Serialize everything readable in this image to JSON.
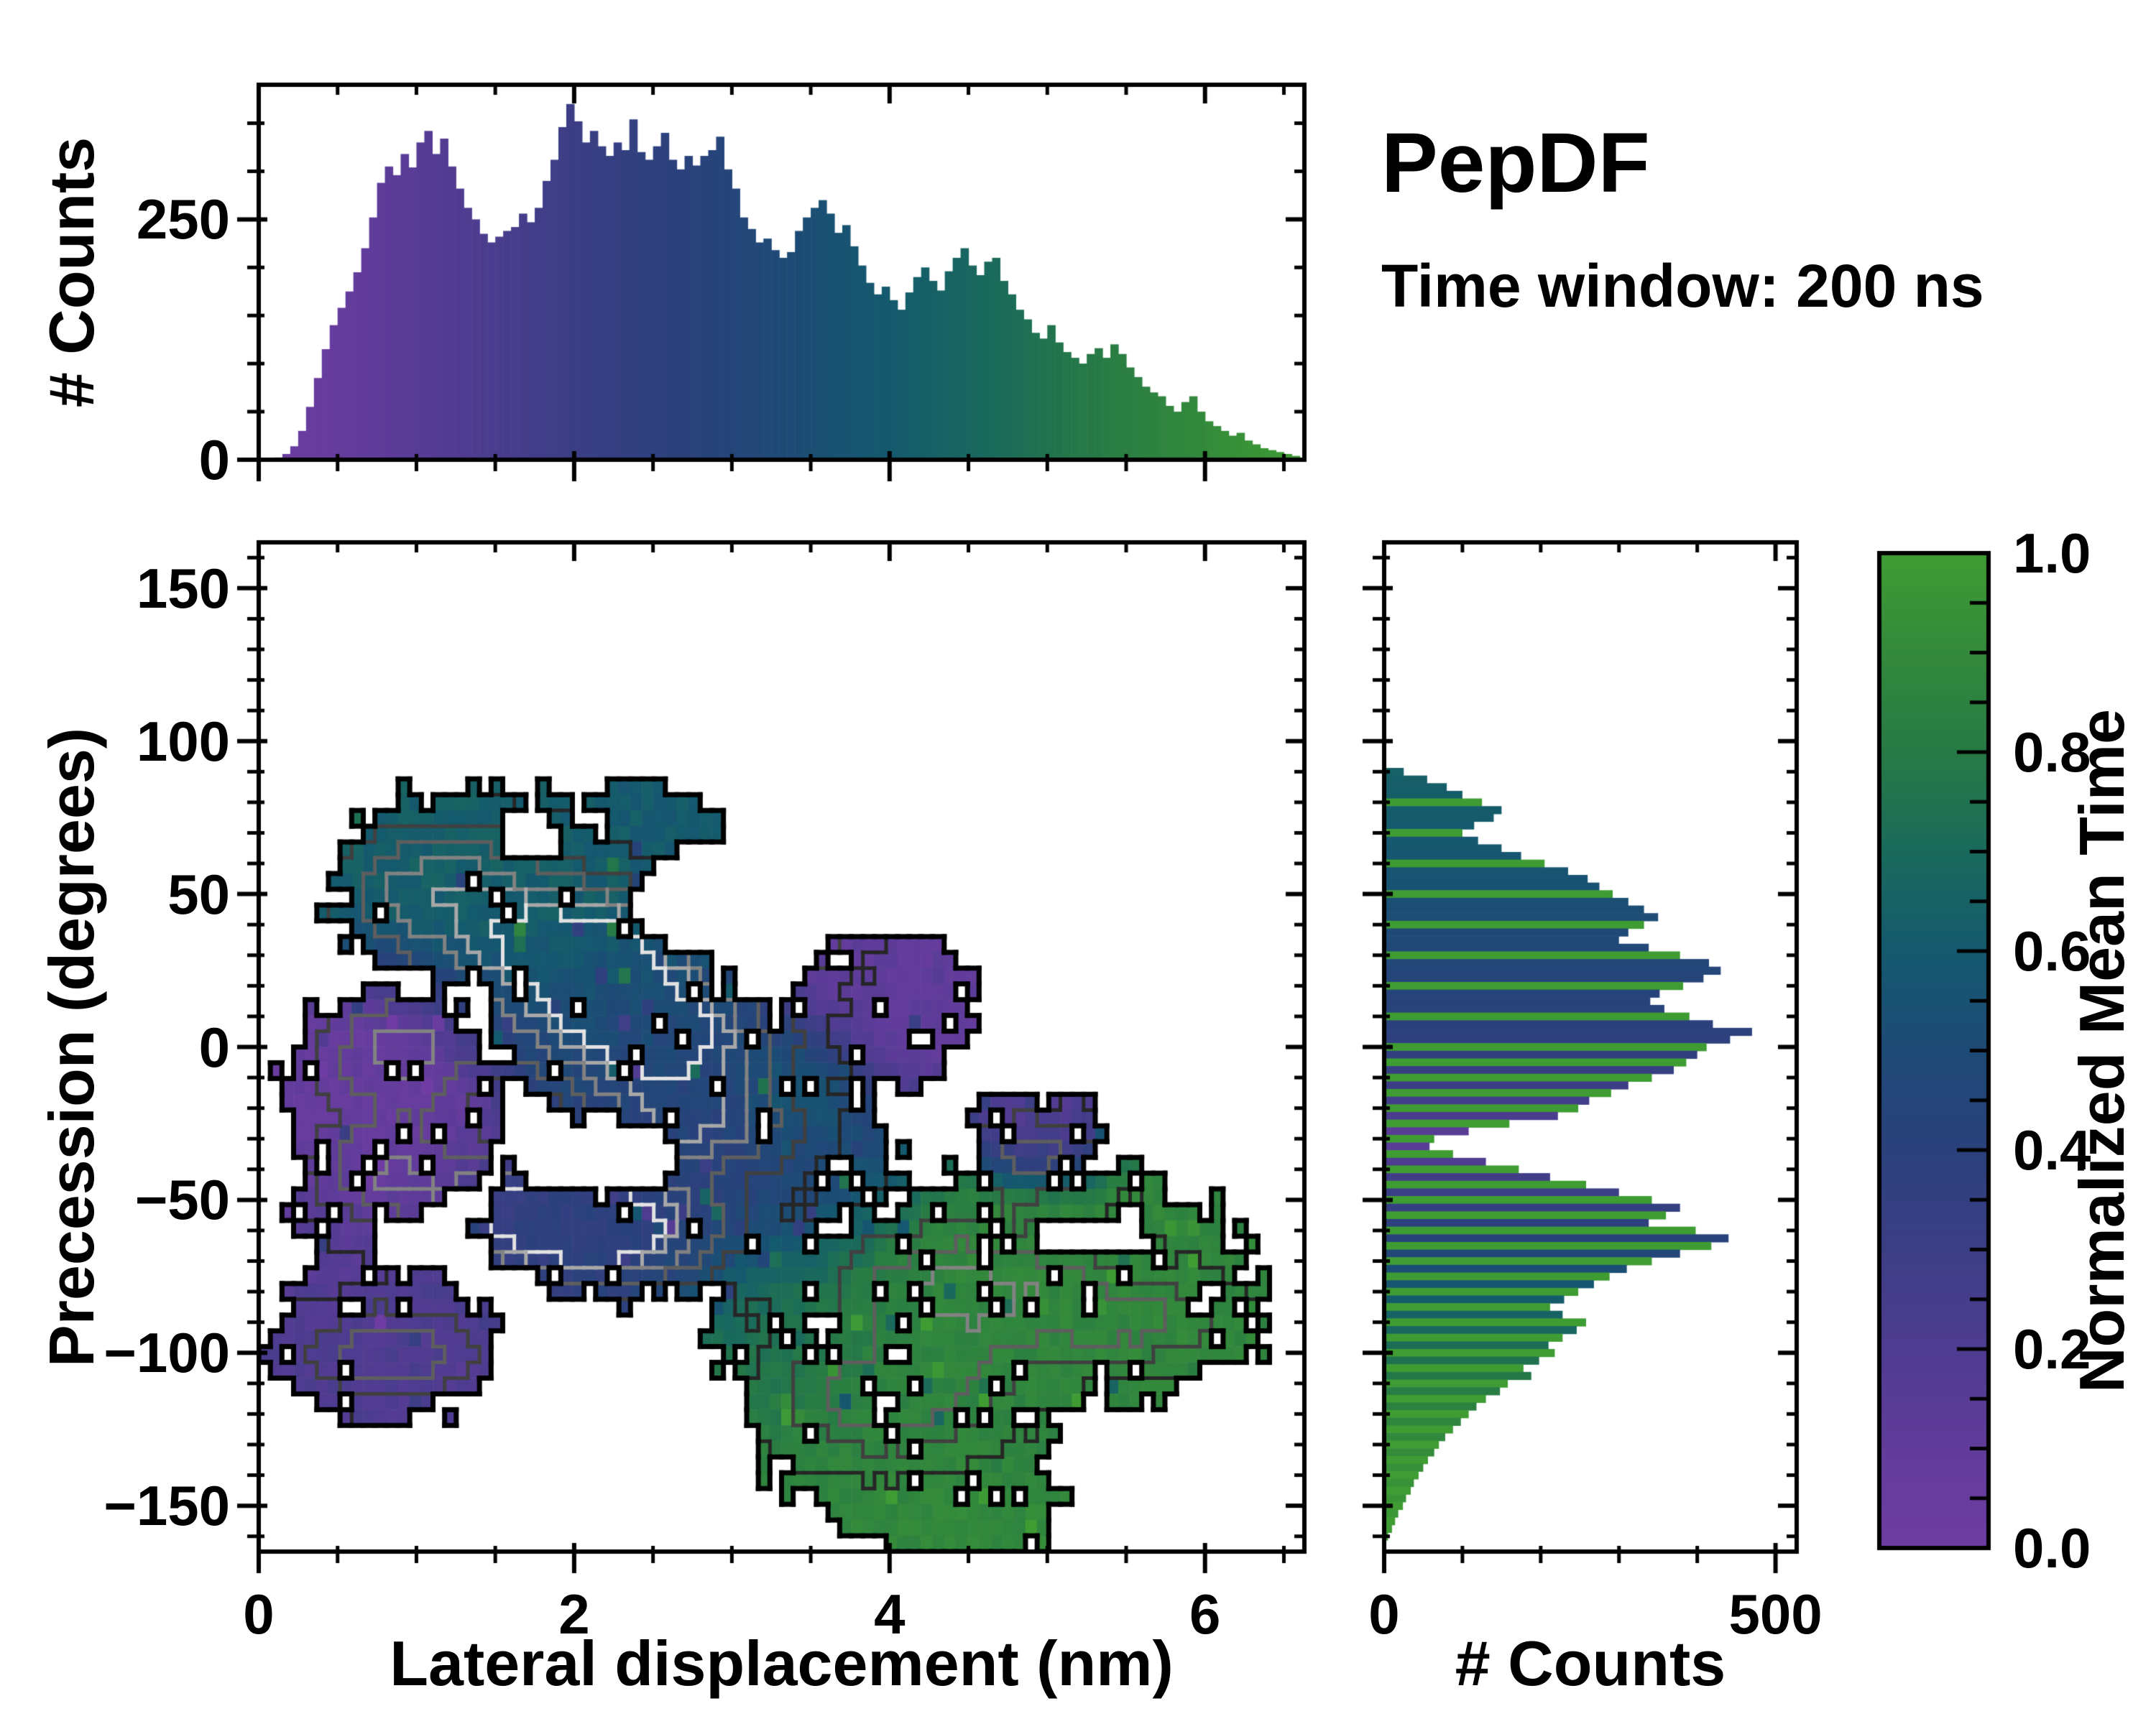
{
  "title": {
    "text": "PepDF",
    "subtitle": "Time window: 200 ns"
  },
  "colormap": {
    "name": "purple-blue-green",
    "stops": [
      [
        0.0,
        "#6e3ca2"
      ],
      [
        0.1,
        "#613c9b"
      ],
      [
        0.2,
        "#4e3c90"
      ],
      [
        0.3,
        "#3c3e85"
      ],
      [
        0.4,
        "#2b417c"
      ],
      [
        0.5,
        "#1e4a76"
      ],
      [
        0.6,
        "#14596e"
      ],
      [
        0.7,
        "#1a6a5c"
      ],
      [
        0.75,
        "#20724f"
      ],
      [
        0.8,
        "#277a45"
      ],
      [
        0.9,
        "#33893b"
      ],
      [
        1.0,
        "#3f9c33"
      ]
    ]
  },
  "chart_data": [
    {
      "id": "top-histogram",
      "type": "bar",
      "ylabel": "# Counts",
      "xlim": [
        0,
        6.63
      ],
      "ylim": [
        0,
        390
      ],
      "bin_start": 0.0,
      "bin_width": 0.05,
      "x_major_ticks": [
        0,
        2,
        4,
        6
      ],
      "x_minor_step": 0.5,
      "y_major_ticks": [
        0,
        250
      ],
      "y_tick_labels": [
        "0",
        "250"
      ],
      "y_minor_ticks": [
        50,
        100,
        150,
        200,
        300,
        350
      ],
      "color_rule": "bar colored by colormap(x / 6.6)",
      "color_anchors": [
        [
          0,
          0.0
        ],
        [
          6.63,
          1.0
        ]
      ],
      "values": [
        0,
        0,
        2,
        6,
        14,
        30,
        55,
        85,
        115,
        140,
        158,
        175,
        195,
        220,
        252,
        288,
        305,
        296,
        318,
        304,
        330,
        342,
        318,
        334,
        305,
        282,
        262,
        250,
        235,
        226,
        232,
        238,
        242,
        256,
        247,
        262,
        290,
        312,
        346,
        370,
        352,
        330,
        342,
        326,
        316,
        330,
        322,
        354,
        320,
        312,
        326,
        340,
        312,
        302,
        316,
        306,
        316,
        322,
        336,
        302,
        282,
        252,
        240,
        226,
        230,
        218,
        210,
        216,
        238,
        252,
        262,
        270,
        256,
        236,
        244,
        222,
        202,
        184,
        172,
        180,
        166,
        156,
        174,
        190,
        200,
        186,
        176,
        196,
        210,
        220,
        202,
        192,
        206,
        210,
        186,
        172,
        156,
        146,
        132,
        126,
        140,
        122,
        112,
        106,
        100,
        110,
        116,
        106,
        120,
        110,
        96,
        86,
        76,
        70,
        66,
        56,
        50,
        60,
        66,
        50,
        40,
        35,
        30,
        25,
        28,
        20,
        16,
        12,
        10,
        8,
        6,
        4
      ]
    },
    {
      "id": "main-density-map",
      "type": "heatmap",
      "xlabel": "Lateral displacement (nm)",
      "ylabel": "Precession (degrees)",
      "xlim": [
        0,
        6.63
      ],
      "ylim": [
        -165,
        165
      ],
      "x_major_ticks": [
        0,
        2,
        4,
        6
      ],
      "x_tick_labels": [
        "0",
        "2",
        "4",
        "6"
      ],
      "x_minor_step": 0.5,
      "y_major_ticks": [
        150,
        100,
        50,
        0,
        -50,
        -100,
        -150
      ],
      "y_tick_labels": [
        "150",
        "100",
        "50",
        "0",
        "−50",
        "−100",
        "−150"
      ],
      "y_minor_step": 10,
      "value_meaning": "normalized mean time (0-1) per 2D bin, white = no counts",
      "grid": {
        "nx": 90,
        "ny": 64
      },
      "blobs": [
        {
          "cx": 1.45,
          "cy": 52,
          "rx": 1.05,
          "ry": 34,
          "v": 0.63
        },
        {
          "cx": 2.45,
          "cy": 68,
          "rx": 0.5,
          "ry": 18,
          "v": 0.6
        },
        {
          "cx": 2.2,
          "cy": 12,
          "rx": 0.8,
          "ry": 26,
          "v": 0.55
        },
        {
          "cx": 2.6,
          "cy": -8,
          "rx": 0.9,
          "ry": 30,
          "v": 0.42
        },
        {
          "cx": 2.5,
          "cy": -55,
          "rx": 1.15,
          "ry": 28,
          "v": 0.38
        },
        {
          "cx": 0.85,
          "cy": -18,
          "rx": 0.72,
          "ry": 40,
          "v": 0.07
        },
        {
          "cx": 0.8,
          "cy": -98,
          "rx": 0.72,
          "ry": 26,
          "v": 0.2
        },
        {
          "cx": 0.42,
          "cy": -65,
          "rx": 0.3,
          "ry": 25,
          "v": 0.15
        },
        {
          "cx": 3.95,
          "cy": 12,
          "rx": 0.6,
          "ry": 26,
          "v": 0.1
        },
        {
          "cx": 3.45,
          "cy": -12,
          "rx": 0.35,
          "ry": 16,
          "v": 0.72
        },
        {
          "cx": 3.3,
          "cy": -35,
          "rx": 0.8,
          "ry": 25,
          "v": 0.45
        },
        {
          "cx": 4.85,
          "cy": -80,
          "rx": 1.55,
          "ry": 42,
          "v": 0.88
        },
        {
          "cx": 4.1,
          "cy": -120,
          "rx": 1.0,
          "ry": 35,
          "v": 0.85
        },
        {
          "cx": 4.35,
          "cy": -148,
          "rx": 0.75,
          "ry": 22,
          "v": 0.9
        },
        {
          "cx": 3.35,
          "cy": -90,
          "rx": 0.55,
          "ry": 28,
          "v": 0.7
        },
        {
          "cx": 4.95,
          "cy": -28,
          "rx": 0.42,
          "ry": 16,
          "v": 0.12
        }
      ],
      "holes": [
        {
          "cx": 2.15,
          "cy": -36,
          "rx": 0.5,
          "ry": 13
        },
        {
          "cx": 2.95,
          "cy": 52,
          "rx": 0.55,
          "ry": 16
        },
        {
          "cx": 1.72,
          "cy": 70,
          "rx": 0.18,
          "ry": 10
        },
        {
          "cx": 5.3,
          "cy": -62,
          "rx": 0.4,
          "ry": 7
        },
        {
          "cx": 0.12,
          "cy": -68,
          "rx": 0.22,
          "ry": 10
        }
      ],
      "density_peaks": [
        {
          "x": 2.05,
          "y": 30,
          "a": 1.0,
          "sx": 0.45,
          "sy": 14
        },
        {
          "x": 2.5,
          "y": 4,
          "a": 0.85,
          "sx": 0.5,
          "sy": 13
        },
        {
          "x": 2.15,
          "y": -60,
          "a": 0.95,
          "sx": 0.5,
          "sy": 12
        },
        {
          "x": 2.75,
          "y": -25,
          "a": 0.6,
          "sx": 0.45,
          "sy": 12
        },
        {
          "x": 1.15,
          "y": 50,
          "a": 0.55,
          "sx": 0.5,
          "sy": 16
        },
        {
          "x": 0.9,
          "y": -2,
          "a": 0.5,
          "sx": 0.4,
          "sy": 14
        },
        {
          "x": 0.8,
          "y": -40,
          "a": 0.45,
          "sx": 0.35,
          "sy": 12
        },
        {
          "x": 0.85,
          "y": -100,
          "a": 0.45,
          "sx": 0.4,
          "sy": 11
        },
        {
          "x": 1.7,
          "y": -52,
          "a": 0.5,
          "sx": 0.4,
          "sy": 11
        },
        {
          "x": 4.5,
          "y": -80,
          "a": 0.5,
          "sx": 0.6,
          "sy": 16
        },
        {
          "x": 4.0,
          "y": -115,
          "a": 0.4,
          "sx": 0.5,
          "sy": 13
        },
        {
          "x": 4.9,
          "y": -35,
          "a": 0.35,
          "sx": 0.35,
          "sy": 10
        },
        {
          "x": 3.4,
          "y": 35,
          "a": 0.3,
          "sx": 0.3,
          "sy": 9
        },
        {
          "x": 5.6,
          "y": -90,
          "a": 0.3,
          "sx": 0.4,
          "sy": 10
        }
      ],
      "contour_levels": [
        0.2,
        0.33,
        0.46,
        0.6,
        0.74,
        0.88
      ],
      "contour_colors": [
        "#262626",
        "#404040",
        "#5e5e5e",
        "#828282",
        "#a8a8a8",
        "#e2e2e2"
      ],
      "boundary_color": "#000000"
    },
    {
      "id": "right-histogram",
      "type": "bar",
      "orientation": "horizontal",
      "xlabel": "# Counts",
      "xlim": [
        0,
        527
      ],
      "ylim": [
        -165,
        165
      ],
      "x_major_ticks": [
        0,
        500
      ],
      "x_tick_labels": [
        "0",
        "500"
      ],
      "x_minor_ticks": [
        100,
        200,
        300,
        400
      ],
      "y_minor_step": 10,
      "y_major_step": 50,
      "bin_y_start": 90,
      "bin_y_step": -2.5,
      "color_rule": "bar colored by colormap(normalized mean time of that precession row)",
      "color_anchors": [
        [
          90,
          0.64
        ],
        [
          80,
          0.62
        ],
        [
          70,
          0.6
        ],
        [
          60,
          0.57
        ],
        [
          50,
          0.54
        ],
        [
          40,
          0.5
        ],
        [
          30,
          0.47
        ],
        [
          20,
          0.44
        ],
        [
          10,
          0.41
        ],
        [
          0,
          0.37
        ],
        [
          -5,
          0.35
        ],
        [
          -10,
          0.32
        ],
        [
          -15,
          0.29
        ],
        [
          -20,
          0.25
        ],
        [
          -25,
          0.18
        ],
        [
          -30,
          0.12
        ],
        [
          -35,
          0.17
        ],
        [
          -40,
          0.24
        ],
        [
          -45,
          0.29
        ],
        [
          -50,
          0.33
        ],
        [
          -55,
          0.36
        ],
        [
          -60,
          0.4
        ],
        [
          -65,
          0.44
        ],
        [
          -70,
          0.5
        ],
        [
          -75,
          0.55
        ],
        [
          -80,
          0.6
        ],
        [
          -85,
          0.63
        ],
        [
          -90,
          0.67
        ],
        [
          -95,
          0.7
        ],
        [
          -100,
          0.73
        ],
        [
          -105,
          0.76
        ],
        [
          -110,
          0.8
        ],
        [
          -115,
          0.83
        ],
        [
          -120,
          0.86
        ],
        [
          -125,
          0.88
        ],
        [
          -130,
          0.9
        ],
        [
          -135,
          0.92
        ],
        [
          -140,
          0.94
        ],
        [
          -145,
          0.95
        ],
        [
          -150,
          0.96
        ],
        [
          -155,
          0.98
        ],
        [
          -160,
          1.0
        ]
      ],
      "values": [
        25,
        55,
        80,
        100,
        125,
        150,
        140,
        115,
        100,
        120,
        150,
        175,
        205,
        235,
        260,
        275,
        292,
        312,
        332,
        350,
        332,
        312,
        300,
        338,
        378,
        415,
        430,
        408,
        382,
        352,
        340,
        358,
        390,
        420,
        470,
        442,
        412,
        400,
        386,
        370,
        342,
        312,
        290,
        262,
        248,
        222,
        160,
        108,
        64,
        58,
        88,
        130,
        172,
        212,
        258,
        300,
        342,
        378,
        360,
        338,
        398,
        440,
        418,
        378,
        342,
        310,
        288,
        268,
        248,
        230,
        212,
        228,
        258,
        246,
        228,
        210,
        218,
        198,
        178,
        188,
        158,
        148,
        130,
        118,
        108,
        98,
        88,
        78,
        70,
        64,
        56,
        50,
        44,
        38,
        34,
        28,
        24,
        18,
        14,
        10,
        5
      ]
    },
    {
      "id": "colorbar",
      "type": "colorbar",
      "label": "Normalized Mean Time",
      "range": [
        0.0,
        1.0
      ],
      "major_ticks": [
        0.0,
        0.2,
        0.4,
        0.6,
        0.8,
        1.0
      ],
      "tick_labels": [
        "0.0",
        "0.2",
        "0.4",
        "0.6",
        "0.8",
        "1.0"
      ],
      "minor_step": 0.05
    }
  ]
}
